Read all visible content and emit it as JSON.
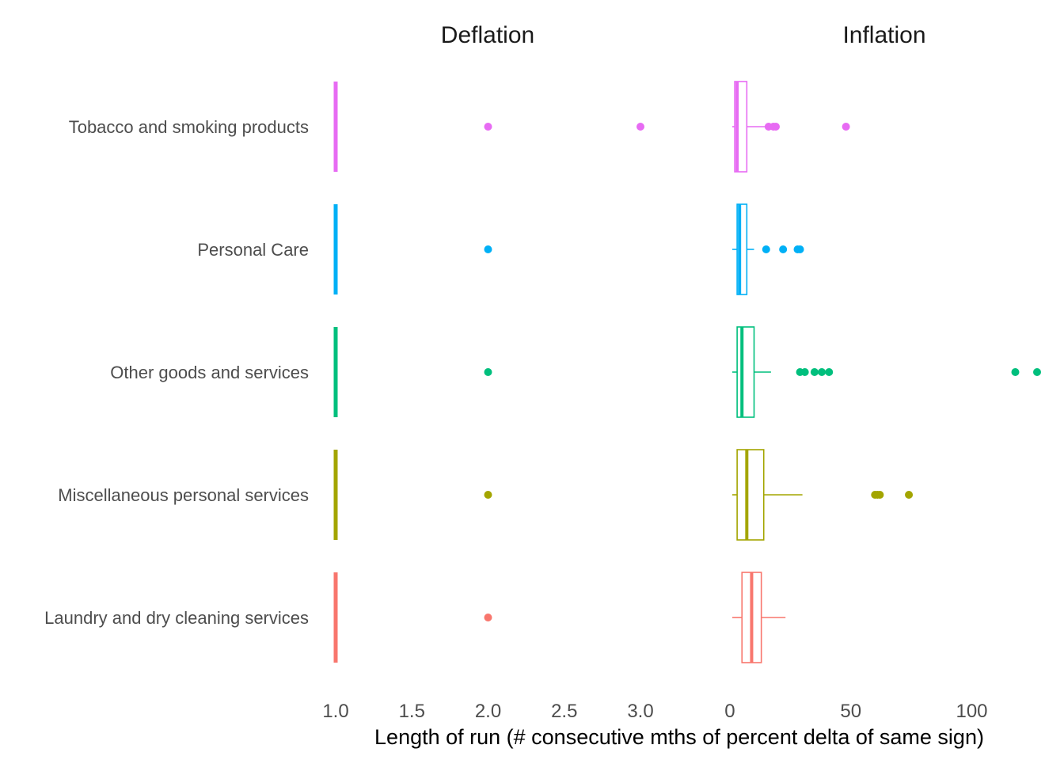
{
  "chart_data": {
    "type": "boxplot",
    "xlabel": "Length of run (# consecutive mths of percent delta of same sign)",
    "categories": [
      "Laundry and dry cleaning services",
      "Miscellaneous personal services",
      "Other goods and services",
      "Personal Care",
      "Tobacco and smoking products"
    ],
    "colors": {
      "Laundry and dry cleaning services": "#F8766D",
      "Miscellaneous personal services": "#A3A500",
      "Other goods and services": "#00BF7D",
      "Personal Care": "#00B0F6",
      "Tobacco and smoking products": "#E76BF3"
    },
    "facets": [
      {
        "title": "Deflation",
        "xlim": [
          1.0,
          3.0
        ],
        "ticks": [
          1.0,
          1.5,
          2.0,
          2.5,
          3.0
        ],
        "tick_labels": [
          "1.0",
          "1.5",
          "2.0",
          "2.5",
          "3.0"
        ],
        "boxes": [
          {
            "category": "Laundry and dry cleaning services",
            "min": 1,
            "q1": 1,
            "median": 1,
            "q3": 1,
            "max": 1,
            "outliers": [
              2
            ]
          },
          {
            "category": "Miscellaneous personal services",
            "min": 1,
            "q1": 1,
            "median": 1,
            "q3": 1,
            "max": 1,
            "outliers": [
              2
            ]
          },
          {
            "category": "Other goods and services",
            "min": 1,
            "q1": 1,
            "median": 1,
            "q3": 1,
            "max": 1,
            "outliers": [
              2
            ]
          },
          {
            "category": "Personal Care",
            "min": 1,
            "q1": 1,
            "median": 1,
            "q3": 1,
            "max": 1,
            "outliers": [
              2
            ]
          },
          {
            "category": "Tobacco and smoking products",
            "min": 1,
            "q1": 1,
            "median": 1,
            "q3": 1,
            "max": 1,
            "outliers": [
              2,
              3
            ]
          }
        ]
      },
      {
        "title": "Inflation",
        "xlim": [
          1,
          127
        ],
        "ticks": [
          0,
          50,
          100
        ],
        "tick_labels": [
          "0",
          "50",
          "100"
        ],
        "boxes": [
          {
            "category": "Laundry and dry cleaning services",
            "min": 1,
            "q1": 5,
            "median": 9,
            "q3": 13,
            "max": 23,
            "outliers": []
          },
          {
            "category": "Miscellaneous personal services",
            "min": 1,
            "q1": 3,
            "median": 7,
            "q3": 14,
            "max": 30,
            "outliers": [
              60,
              61,
              62,
              74
            ]
          },
          {
            "category": "Other goods and services",
            "min": 1,
            "q1": 3,
            "median": 5,
            "q3": 10,
            "max": 17,
            "outliers": [
              29,
              31,
              35,
              38,
              41,
              118,
              127
            ]
          },
          {
            "category": "Personal Care",
            "min": 1,
            "q1": 3,
            "median": 4,
            "q3": 7,
            "max": 10,
            "outliers": [
              15,
              22,
              28,
              29
            ]
          },
          {
            "category": "Tobacco and smoking products",
            "min": 1,
            "q1": 2,
            "median": 3,
            "q3": 7,
            "max": 15,
            "outliers": [
              16,
              18,
              19,
              48
            ]
          }
        ]
      }
    ]
  }
}
